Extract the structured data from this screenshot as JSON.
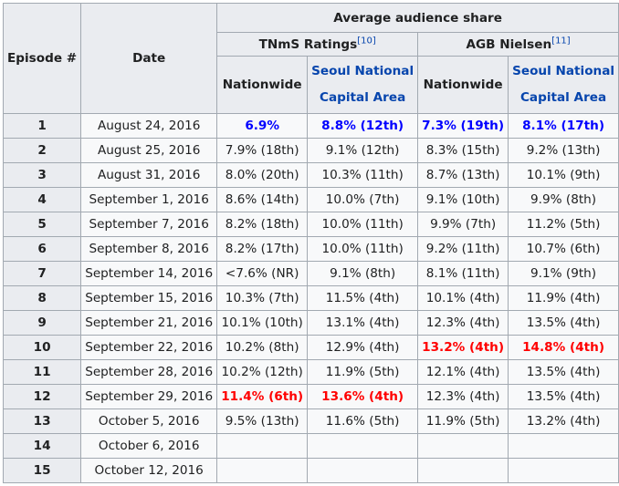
{
  "headers": {
    "episode": "Episode #",
    "date": "Date",
    "average": "Average audience share",
    "tnms": "TNmS Ratings",
    "tnms_ref": "[10]",
    "agb": "AGB Nielsen",
    "agb_ref": "[11]",
    "nationwide": "Nationwide",
    "seoul_line1": "Seoul National",
    "seoul_line2": "Capital Area"
  },
  "highlight_colors": {
    "lowest": "#0000ff",
    "highest": "#ff0000",
    "link": "#0645ad"
  },
  "rows": [
    {
      "ep": "1",
      "date": "August 24, 2016",
      "tn": "6.9%",
      "ts": "8.8% (12th)",
      "an": "7.3% (19th)",
      "as": "8.1% (17th)"
    },
    {
      "ep": "2",
      "date": "August 25, 2016",
      "tn": "7.9% (18th)",
      "ts": "9.1% (12th)",
      "an": "8.3% (15th)",
      "as": "9.2% (13th)"
    },
    {
      "ep": "3",
      "date": "August 31, 2016",
      "tn": "8.0% (20th)",
      "ts": "10.3% (11th)",
      "an": "8.7% (13th)",
      "as": "10.1% (9th)"
    },
    {
      "ep": "4",
      "date": "September 1, 2016",
      "tn": "8.6% (14th)",
      "ts": "10.0% (7th)",
      "an": "9.1% (10th)",
      "as": "9.9% (8th)"
    },
    {
      "ep": "5",
      "date": "September 7, 2016",
      "tn": "8.2% (18th)",
      "ts": "10.0% (11th)",
      "an": "9.9% (7th)",
      "as": "11.2% (5th)"
    },
    {
      "ep": "6",
      "date": "September 8, 2016",
      "tn": "8.2% (17th)",
      "ts": "10.0% (11th)",
      "an": "9.2% (11th)",
      "as": "10.7% (6th)"
    },
    {
      "ep": "7",
      "date": "September 14, 2016",
      "tn": "<7.6% (NR)",
      "ts": "9.1% (8th)",
      "an": "8.1% (11th)",
      "as": "9.1% (9th)"
    },
    {
      "ep": "8",
      "date": "September 15, 2016",
      "tn": "10.3% (7th)",
      "ts": "11.5% (4th)",
      "an": "10.1% (4th)",
      "as": "11.9% (4th)"
    },
    {
      "ep": "9",
      "date": "September 21, 2016",
      "tn": "10.1% (10th)",
      "ts": "13.1% (4th)",
      "an": "12.3% (4th)",
      "as": "13.5% (4th)"
    },
    {
      "ep": "10",
      "date": "September 22, 2016",
      "tn": "10.2% (8th)",
      "ts": "12.9% (4th)",
      "an": "13.2% (4th)",
      "as": "14.8% (4th)"
    },
    {
      "ep": "11",
      "date": "September 28, 2016",
      "tn": "10.2% (12th)",
      "ts": "11.9% (5th)",
      "an": "12.1% (4th)",
      "as": "13.5% (4th)"
    },
    {
      "ep": "12",
      "date": "September 29, 2016",
      "tn": "11.4% (6th)",
      "ts": "13.6% (4th)",
      "an": "12.3% (4th)",
      "as": "13.5% (4th)"
    },
    {
      "ep": "13",
      "date": "October 5, 2016",
      "tn": "9.5% (13th)",
      "ts": "11.6% (5th)",
      "an": "11.9% (5th)",
      "as": "13.2% (4th)"
    },
    {
      "ep": "14",
      "date": "October 6, 2016",
      "tn": "",
      "ts": "",
      "an": "",
      "as": ""
    },
    {
      "ep": "15",
      "date": "October 12, 2016",
      "tn": "",
      "ts": "",
      "an": "",
      "as": ""
    }
  ]
}
